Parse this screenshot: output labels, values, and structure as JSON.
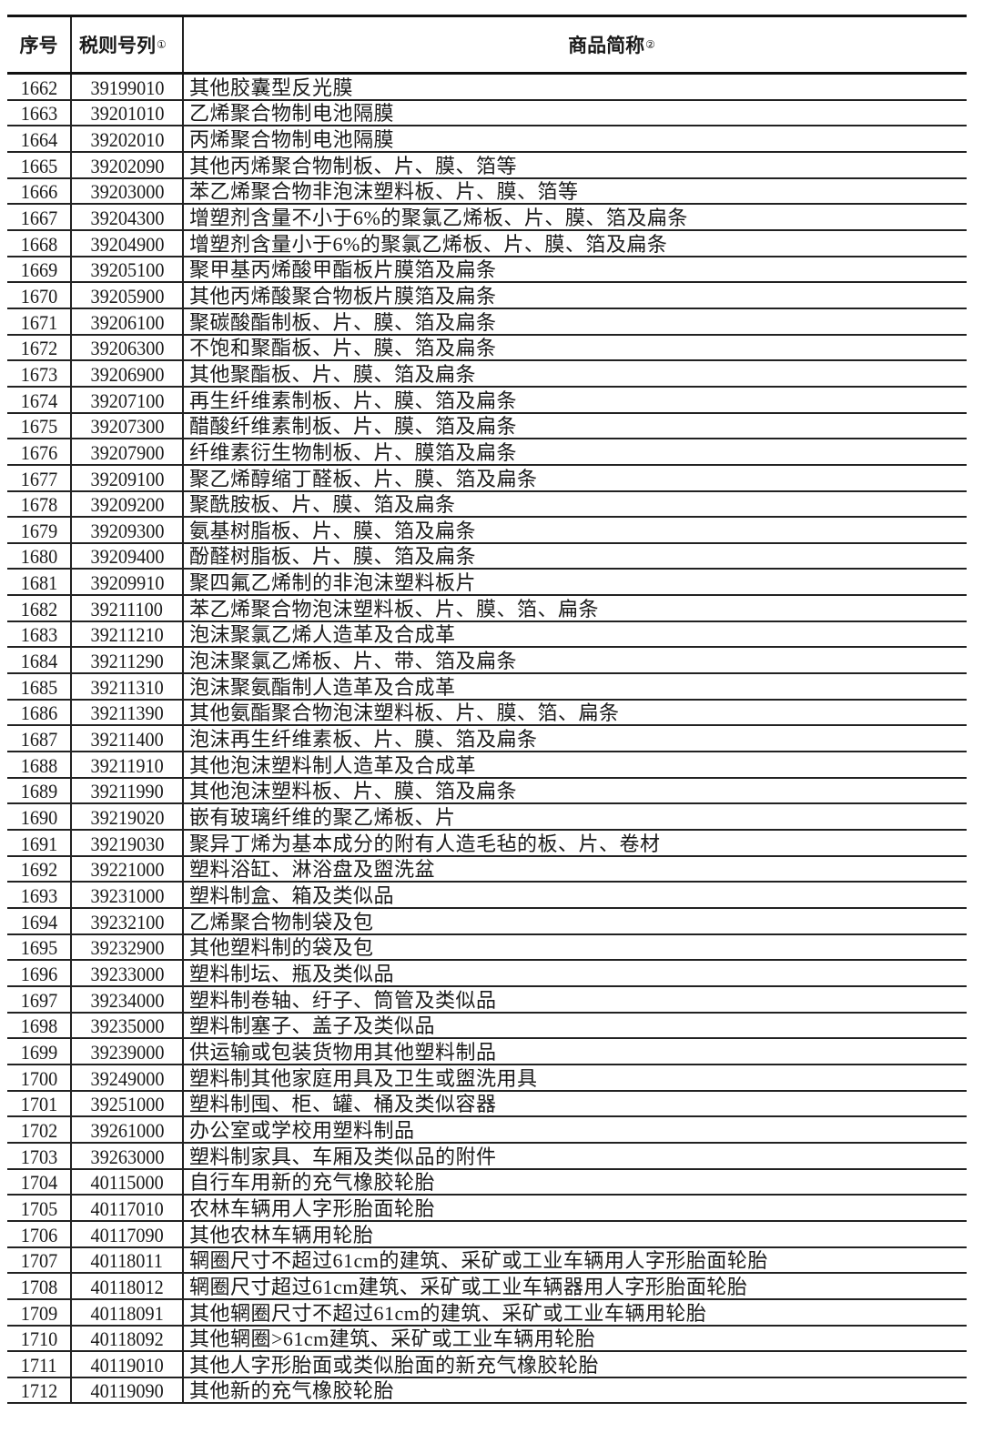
{
  "header": {
    "seq": "序号",
    "code": "税则号列",
    "code_note": "①",
    "name": "商品简称",
    "name_note": "②"
  },
  "rows": [
    [
      "1662",
      "39199010",
      "其他胶囊型反光膜"
    ],
    [
      "1663",
      "39201010",
      "乙烯聚合物制电池隔膜"
    ],
    [
      "1664",
      "39202010",
      "丙烯聚合物制电池隔膜"
    ],
    [
      "1665",
      "39202090",
      "其他丙烯聚合物制板、片、膜、箔等"
    ],
    [
      "1666",
      "39203000",
      "苯乙烯聚合物非泡沫塑料板、片、膜、箔等"
    ],
    [
      "1667",
      "39204300",
      "增塑剂含量不小于6%的聚氯乙烯板、片、膜、箔及扁条"
    ],
    [
      "1668",
      "39204900",
      "增塑剂含量小于6%的聚氯乙烯板、片、膜、箔及扁条"
    ],
    [
      "1669",
      "39205100",
      "聚甲基丙烯酸甲酯板片膜箔及扁条"
    ],
    [
      "1670",
      "39205900",
      "其他丙烯酸聚合物板片膜箔及扁条"
    ],
    [
      "1671",
      "39206100",
      "聚碳酸酯制板、片、膜、箔及扁条"
    ],
    [
      "1672",
      "39206300",
      "不饱和聚酯板、片、膜、箔及扁条"
    ],
    [
      "1673",
      "39206900",
      "其他聚酯板、片、膜、箔及扁条"
    ],
    [
      "1674",
      "39207100",
      "再生纤维素制板、片、膜、箔及扁条"
    ],
    [
      "1675",
      "39207300",
      "醋酸纤维素制板、片、膜、箔及扁条"
    ],
    [
      "1676",
      "39207900",
      "纤维素衍生物制板、片、膜箔及扁条"
    ],
    [
      "1677",
      "39209100",
      "聚乙烯醇缩丁醛板、片、膜、箔及扁条"
    ],
    [
      "1678",
      "39209200",
      "聚酰胺板、片、膜、箔及扁条"
    ],
    [
      "1679",
      "39209300",
      "氨基树脂板、片、膜、箔及扁条"
    ],
    [
      "1680",
      "39209400",
      "酚醛树脂板、片、膜、箔及扁条"
    ],
    [
      "1681",
      "39209910",
      "聚四氟乙烯制的非泡沫塑料板片"
    ],
    [
      "1682",
      "39211100",
      "苯乙烯聚合物泡沫塑料板、片、膜、箔、扁条"
    ],
    [
      "1683",
      "39211210",
      "泡沫聚氯乙烯人造革及合成革"
    ],
    [
      "1684",
      "39211290",
      "泡沫聚氯乙烯板、片、带、箔及扁条"
    ],
    [
      "1685",
      "39211310",
      "泡沫聚氨酯制人造革及合成革"
    ],
    [
      "1686",
      "39211390",
      "其他氨酯聚合物泡沫塑料板、片、膜、箔、扁条"
    ],
    [
      "1687",
      "39211400",
      "泡沫再生纤维素板、片、膜、箔及扁条"
    ],
    [
      "1688",
      "39211910",
      "其他泡沫塑料制人造革及合成革"
    ],
    [
      "1689",
      "39211990",
      "其他泡沫塑料板、片、膜、箔及扁条"
    ],
    [
      "1690",
      "39219020",
      "嵌有玻璃纤维的聚乙烯板、片"
    ],
    [
      "1691",
      "39219030",
      "聚异丁烯为基本成分的附有人造毛毡的板、片、卷材"
    ],
    [
      "1692",
      "39221000",
      "塑料浴缸、淋浴盘及盥洗盆"
    ],
    [
      "1693",
      "39231000",
      "塑料制盒、箱及类似品"
    ],
    [
      "1694",
      "39232100",
      "乙烯聚合物制袋及包"
    ],
    [
      "1695",
      "39232900",
      "其他塑料制的袋及包"
    ],
    [
      "1696",
      "39233000",
      "塑料制坛、瓶及类似品"
    ],
    [
      "1697",
      "39234000",
      "塑料制卷轴、纡子、筒管及类似品"
    ],
    [
      "1698",
      "39235000",
      "塑料制塞子、盖子及类似品"
    ],
    [
      "1699",
      "39239000",
      "供运输或包装货物用其他塑料制品"
    ],
    [
      "1700",
      "39249000",
      "塑料制其他家庭用具及卫生或盥洗用具"
    ],
    [
      "1701",
      "39251000",
      "塑料制囤、柜、罐、桶及类似容器"
    ],
    [
      "1702",
      "39261000",
      "办公室或学校用塑料制品"
    ],
    [
      "1703",
      "39263000",
      "塑料制家具、车厢及类似品的附件"
    ],
    [
      "1704",
      "40115000",
      "自行车用新的充气橡胶轮胎"
    ],
    [
      "1705",
      "40117010",
      "农林车辆用人字形胎面轮胎"
    ],
    [
      "1706",
      "40117090",
      "其他农林车辆用轮胎"
    ],
    [
      "1707",
      "40118011",
      "辋圈尺寸不超过61cm的建筑、采矿或工业车辆用人字形胎面轮胎"
    ],
    [
      "1708",
      "40118012",
      "辋圈尺寸超过61cm建筑、采矿或工业车辆器用人字形胎面轮胎"
    ],
    [
      "1709",
      "40118091",
      "其他辋圈尺寸不超过61cm的建筑、采矿或工业车辆用轮胎"
    ],
    [
      "1710",
      "40118092",
      "其他辋圈>61cm建筑、采矿或工业车辆用轮胎"
    ],
    [
      "1711",
      "40119010",
      "其他人字形胎面或类似胎面的新充气橡胶轮胎"
    ],
    [
      "1712",
      "40119090",
      "其他新的充气橡胶轮胎"
    ]
  ]
}
